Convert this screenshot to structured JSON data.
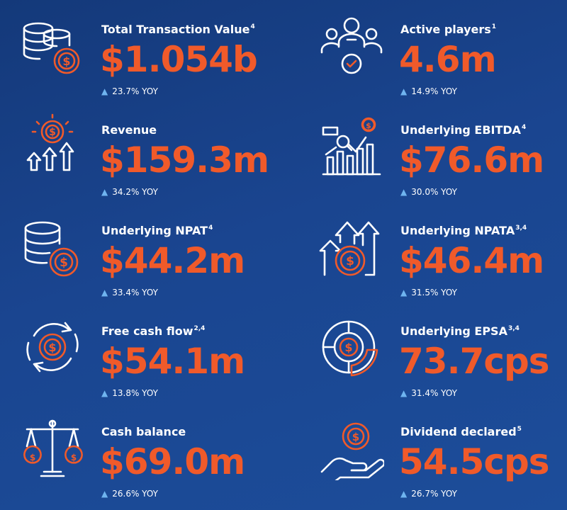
{
  "metrics": [
    {
      "title": "Total Transaction Value",
      "sup": "4",
      "value": "$1.054b",
      "change": "23.7% YOY",
      "icon": "coins-dollar-icon"
    },
    {
      "title": "Active players",
      "sup": "1",
      "value": "4.6m",
      "change": "14.9% YOY",
      "icon": "players-group-icon"
    },
    {
      "title": "Revenue",
      "sup": "",
      "value": "$159.3m",
      "change": "34.2% YOY",
      "icon": "revenue-arrows-icon"
    },
    {
      "title": "Underlying EBITDA",
      "sup": "4",
      "value": "$76.6m",
      "change": "30.0% YOY",
      "icon": "bar-chart-analytics-icon"
    },
    {
      "title": "Underlying NPAT",
      "sup": "4",
      "value": "$44.2m",
      "change": "33.4% YOY",
      "icon": "database-dollar-icon"
    },
    {
      "title": "Underlying NPATA",
      "sup": "3,4",
      "value": "$46.4m",
      "change": "31.5% YOY",
      "icon": "growth-arrows-dollar-icon"
    },
    {
      "title": "Free cash flow",
      "sup": "2,4",
      "value": "$54.1m",
      "change": "13.8% YOY",
      "icon": "cash-cycle-icon"
    },
    {
      "title": "Underlying EPSA",
      "sup": "3,4",
      "value": "73.7cps",
      "change": "31.4% YOY",
      "icon": "pie-dollar-icon"
    },
    {
      "title": "Cash balance",
      "sup": "",
      "value": "$69.0m",
      "change": "26.6% YOY",
      "icon": "balance-scale-icon"
    },
    {
      "title": "Dividend declared",
      "sup": "5",
      "value": "54.5cps",
      "change": "26.7% YOY",
      "icon": "hand-coin-icon"
    }
  ],
  "icon_glyph": "$",
  "trend_glyph": "▲",
  "colors": {
    "background": "#1a4590",
    "accent": "#f05a2a",
    "trend": "#6fb4ef",
    "text": "#ffffff"
  }
}
